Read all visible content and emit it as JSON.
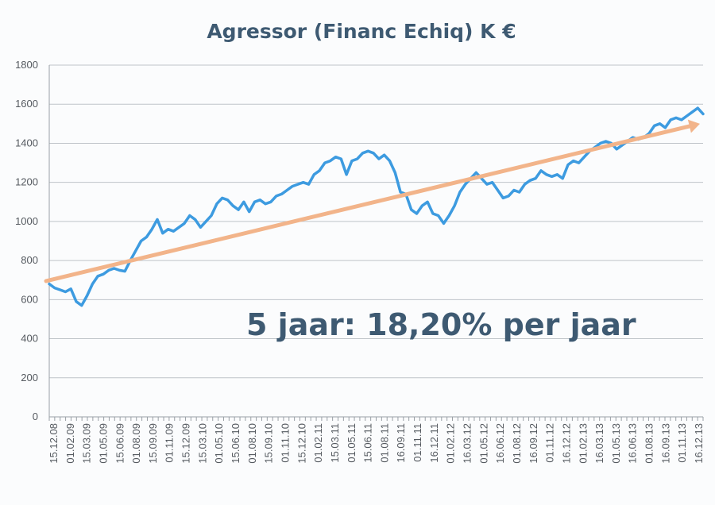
{
  "chart_data": {
    "type": "line",
    "title": "Agressor  (Financ Echiq) K €",
    "xlabel": "",
    "ylabel": "",
    "ylim": [
      0,
      1800
    ],
    "yticks": [
      0,
      200,
      400,
      600,
      800,
      1000,
      1200,
      1400,
      1600,
      1800
    ],
    "grid": "horizontal",
    "x_tick_labels": [
      "15.12.08",
      "01.02.09",
      "15.03.09",
      "01.05.09",
      "15.06.09",
      "01.08.09",
      "15.09.09",
      "01.11.09",
      "15.12.09",
      "15.03.10",
      "01.05.10",
      "15.06.10",
      "01.08.10",
      "15.09.10",
      "01.11.10",
      "15.12.10",
      "01.02.11",
      "15.03.11",
      "01.05.11",
      "15.06.11",
      "01.08.11",
      "16.09.11",
      "01.11.11",
      "16.12.11",
      "01.02.12",
      "16.03.12",
      "01.05.12",
      "16.06.12",
      "01.08.12",
      "16.09.12",
      "01.11.12",
      "16.12.12",
      "01.02.13",
      "16.03.13",
      "01.05.13",
      "16.06.13",
      "01.08.13",
      "16.09.13",
      "01.11.13",
      "16.12.13"
    ],
    "series": [
      {
        "color": "#3d9be0",
        "values": [
          680,
          660,
          650,
          640,
          655,
          590,
          570,
          620,
          680,
          720,
          730,
          750,
          760,
          750,
          745,
          800,
          850,
          900,
          920,
          960,
          1010,
          940,
          960,
          950,
          970,
          990,
          1030,
          1010,
          970,
          1000,
          1030,
          1090,
          1120,
          1110,
          1080,
          1060,
          1100,
          1050,
          1100,
          1110,
          1090,
          1100,
          1130,
          1140,
          1160,
          1180,
          1190,
          1200,
          1190,
          1240,
          1260,
          1300,
          1310,
          1330,
          1320,
          1240,
          1310,
          1320,
          1350,
          1360,
          1350,
          1320,
          1340,
          1310,
          1250,
          1150,
          1140,
          1060,
          1040,
          1080,
          1100,
          1040,
          1030,
          990,
          1030,
          1080,
          1150,
          1190,
          1220,
          1250,
          1220,
          1190,
          1200,
          1160,
          1120,
          1130,
          1160,
          1150,
          1190,
          1210,
          1220,
          1260,
          1240,
          1230,
          1240,
          1220,
          1290,
          1310,
          1300,
          1330,
          1360,
          1380,
          1400,
          1410,
          1400,
          1370,
          1390,
          1410,
          1430,
          1420,
          1430,
          1450,
          1490,
          1500,
          1480,
          1520,
          1530,
          1520,
          1540,
          1560,
          1580,
          1550
        ]
      }
    ],
    "trend": {
      "color": "#f2b48a",
      "start_value": 695,
      "end_value": 1500
    },
    "annotation": "5 jaar: 18,20% per jaar"
  }
}
